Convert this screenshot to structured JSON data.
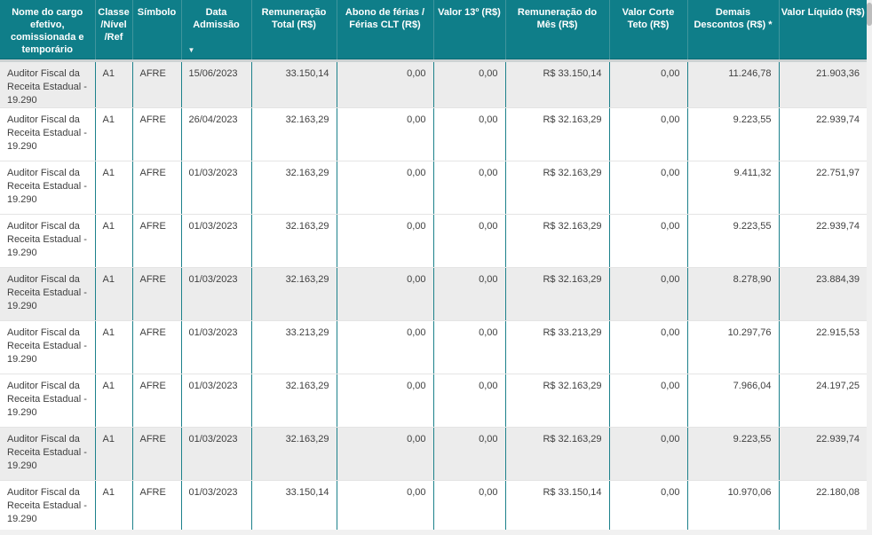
{
  "table": {
    "columns": [
      {
        "label": "Nome do cargo efetivo, comissionada e temporário",
        "align": "left"
      },
      {
        "label": "Classe /Nível /Ref",
        "align": "left"
      },
      {
        "label": "Símbolo",
        "align": "left"
      },
      {
        "label": "Data Admissão",
        "align": "left",
        "sort": "desc",
        "sort_icon": "▼"
      },
      {
        "label": "Remuneração Total (R$)",
        "align": "right"
      },
      {
        "label": "Abono de férias / Férias CLT (R$)",
        "align": "right"
      },
      {
        "label": "Valor 13º (R$)",
        "align": "right"
      },
      {
        "label": "Remuneração do Mês (R$)",
        "align": "right"
      },
      {
        "label": "Valor Corte Teto (R$)",
        "align": "right"
      },
      {
        "label": "Demais Descontos (R$) *",
        "align": "right"
      },
      {
        "label": "Valor Líquido (R$)",
        "align": "right"
      }
    ],
    "rows": [
      {
        "shaded": true,
        "cells": [
          "Auditor Fiscal da Receita Estadual - 19.290",
          "A1",
          "AFRE",
          "15/06/2023",
          "33.150,14",
          "0,00",
          "0,00",
          "R$ 33.150,14",
          "0,00",
          "11.246,78",
          "21.903,36"
        ]
      },
      {
        "shaded": false,
        "cells": [
          "Auditor Fiscal da Receita Estadual - 19.290",
          "A1",
          "AFRE",
          "26/04/2023",
          "32.163,29",
          "0,00",
          "0,00",
          "R$ 32.163,29",
          "0,00",
          "9.223,55",
          "22.939,74"
        ]
      },
      {
        "shaded": false,
        "cells": [
          "Auditor Fiscal da Receita Estadual - 19.290",
          "A1",
          "AFRE",
          "01/03/2023",
          "32.163,29",
          "0,00",
          "0,00",
          "R$ 32.163,29",
          "0,00",
          "9.411,32",
          "22.751,97"
        ]
      },
      {
        "shaded": false,
        "cells": [
          "Auditor Fiscal da Receita Estadual - 19.290",
          "A1",
          "AFRE",
          "01/03/2023",
          "32.163,29",
          "0,00",
          "0,00",
          "R$ 32.163,29",
          "0,00",
          "9.223,55",
          "22.939,74"
        ]
      },
      {
        "shaded": true,
        "cells": [
          "Auditor Fiscal da Receita Estadual - 19.290",
          "A1",
          "AFRE",
          "01/03/2023",
          "32.163,29",
          "0,00",
          "0,00",
          "R$ 32.163,29",
          "0,00",
          "8.278,90",
          "23.884,39"
        ]
      },
      {
        "shaded": false,
        "cells": [
          "Auditor Fiscal da Receita Estadual - 19.290",
          "A1",
          "AFRE",
          "01/03/2023",
          "33.213,29",
          "0,00",
          "0,00",
          "R$ 33.213,29",
          "0,00",
          "10.297,76",
          "22.915,53"
        ]
      },
      {
        "shaded": false,
        "cells": [
          "Auditor Fiscal da Receita Estadual - 19.290",
          "A1",
          "AFRE",
          "01/03/2023",
          "32.163,29",
          "0,00",
          "0,00",
          "R$ 32.163,29",
          "0,00",
          "7.966,04",
          "24.197,25"
        ]
      },
      {
        "shaded": true,
        "cells": [
          "Auditor Fiscal da Receita Estadual - 19.290",
          "A1",
          "AFRE",
          "01/03/2023",
          "32.163,29",
          "0,00",
          "0,00",
          "R$ 32.163,29",
          "0,00",
          "9.223,55",
          "22.939,74"
        ]
      },
      {
        "shaded": false,
        "cells": [
          "Auditor Fiscal da Receita Estadual - 19.290",
          "A1",
          "AFRE",
          "01/03/2023",
          "33.150,14",
          "0,00",
          "0,00",
          "R$ 33.150,14",
          "0,00",
          "10.970,06",
          "22.180,08"
        ]
      }
    ]
  },
  "colors": {
    "header_background": "#0f7e89",
    "header_text": "#ffffff",
    "column_border": "#1d818b",
    "row_border": "#e4e4e4",
    "shaded_row_background": "#ececec",
    "body_text": "#3f3f3f",
    "scrollbar_track": "#f1f1f1",
    "scrollbar_thumb": "#bdbdbd"
  }
}
